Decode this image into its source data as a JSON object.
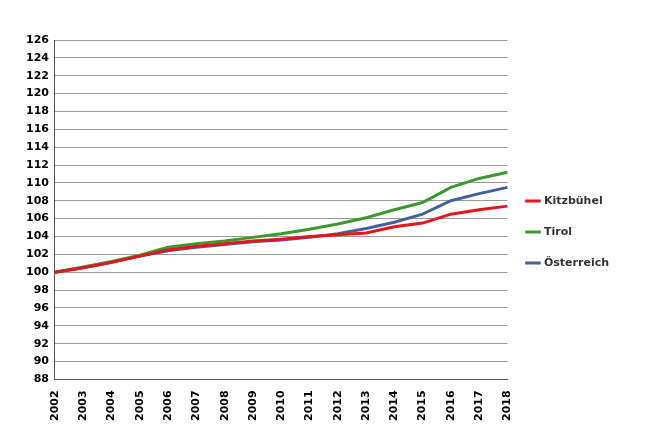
{
  "chart_data": {
    "type": "line",
    "categories": [
      "2002",
      "2003",
      "2004",
      "2005",
      "2006",
      "2007",
      "2008",
      "2009",
      "2010",
      "2011",
      "2012",
      "2013",
      "2014",
      "2015",
      "2016",
      "2017",
      "2018"
    ],
    "series": [
      {
        "name": "Kitzbühel",
        "color": "#e4151b",
        "values": [
          100,
          100.5,
          101.1,
          101.8,
          102.5,
          102.9,
          103.2,
          103.5,
          103.7,
          104.0,
          104.2,
          104.4,
          105.1,
          105.5,
          106.5,
          107.0,
          107.4
        ]
      },
      {
        "name": "Tirol",
        "color": "#3c9a2c",
        "values": [
          100,
          100.6,
          101.2,
          101.9,
          102.8,
          103.2,
          103.5,
          103.9,
          104.3,
          104.8,
          105.4,
          106.1,
          107.0,
          107.8,
          109.5,
          110.5,
          111.2
        ]
      },
      {
        "name": "Österreich",
        "color": "#45619d",
        "values": [
          100,
          100.5,
          101.1,
          101.8,
          102.4,
          102.8,
          103.1,
          103.4,
          103.6,
          103.9,
          104.3,
          104.9,
          105.6,
          106.5,
          108.0,
          108.8,
          109.5
        ]
      }
    ],
    "ylim": [
      88,
      126
    ],
    "yticks": [
      88,
      90,
      92,
      94,
      96,
      98,
      100,
      102,
      104,
      106,
      108,
      110,
      112,
      114,
      116,
      118,
      120,
      122,
      124,
      126
    ],
    "grid": true,
    "legend": "right"
  }
}
